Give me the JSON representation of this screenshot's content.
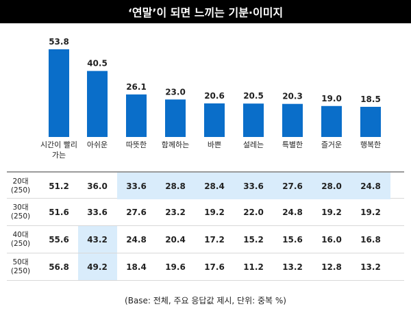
{
  "title": "‘연말’이 되면 느끼는 기분·이미지",
  "chart_data": {
    "type": "bar",
    "categories": [
      "시간이 빨리 가는",
      "아쉬운",
      "따뜻한",
      "함께하는",
      "바쁜",
      "설레는",
      "특별한",
      "즐거운",
      "행복한"
    ],
    "category_lines": [
      [
        "시간이 빨리",
        "가는"
      ],
      [
        "아쉬운"
      ],
      [
        "따뜻한"
      ],
      [
        "함께하는"
      ],
      [
        "바쁜"
      ],
      [
        "설레는"
      ],
      [
        "특별한"
      ],
      [
        "즐거운"
      ],
      [
        "행복한"
      ]
    ],
    "values": [
      53.8,
      40.5,
      26.1,
      23.0,
      20.6,
      20.5,
      20.3,
      19.0,
      18.5
    ],
    "value_labels": [
      "53.8",
      "40.5",
      "26.1",
      "23.0",
      "20.6",
      "20.5",
      "20.3",
      "19.0",
      "18.5"
    ],
    "ylim": [
      0,
      60
    ],
    "bar_color": "#0a6ec9",
    "grid": false,
    "legend": "none"
  },
  "table": {
    "rows": [
      {
        "label_lines": [
          "20대",
          "(250)"
        ],
        "values": [
          "51.2",
          "36.0",
          "33.6",
          "28.8",
          "28.4",
          "33.6",
          "27.6",
          "28.0",
          "24.8"
        ],
        "highlight": [
          false,
          false,
          true,
          true,
          true,
          true,
          true,
          true,
          true
        ]
      },
      {
        "label_lines": [
          "30대",
          "(250)"
        ],
        "values": [
          "51.6",
          "33.6",
          "27.6",
          "23.2",
          "19.2",
          "22.0",
          "24.8",
          "19.2",
          "19.2"
        ],
        "highlight": [
          false,
          false,
          false,
          false,
          false,
          false,
          false,
          false,
          false
        ]
      },
      {
        "label_lines": [
          "40대",
          "(250)"
        ],
        "values": [
          "55.6",
          "43.2",
          "24.8",
          "20.4",
          "17.2",
          "15.2",
          "15.6",
          "16.0",
          "16.8"
        ],
        "highlight": [
          false,
          true,
          false,
          false,
          false,
          false,
          false,
          false,
          false
        ]
      },
      {
        "label_lines": [
          "50대",
          "(250)"
        ],
        "values": [
          "56.8",
          "49.2",
          "18.4",
          "19.6",
          "17.6",
          "11.2",
          "13.2",
          "12.8",
          "13.2"
        ],
        "highlight": [
          false,
          true,
          false,
          false,
          false,
          false,
          false,
          false,
          false
        ]
      }
    ],
    "highlight_color": "#d9ecfb"
  },
  "footnote": "(Base: 전체, 주요 응답값 제시, 단위: 중복 %)"
}
